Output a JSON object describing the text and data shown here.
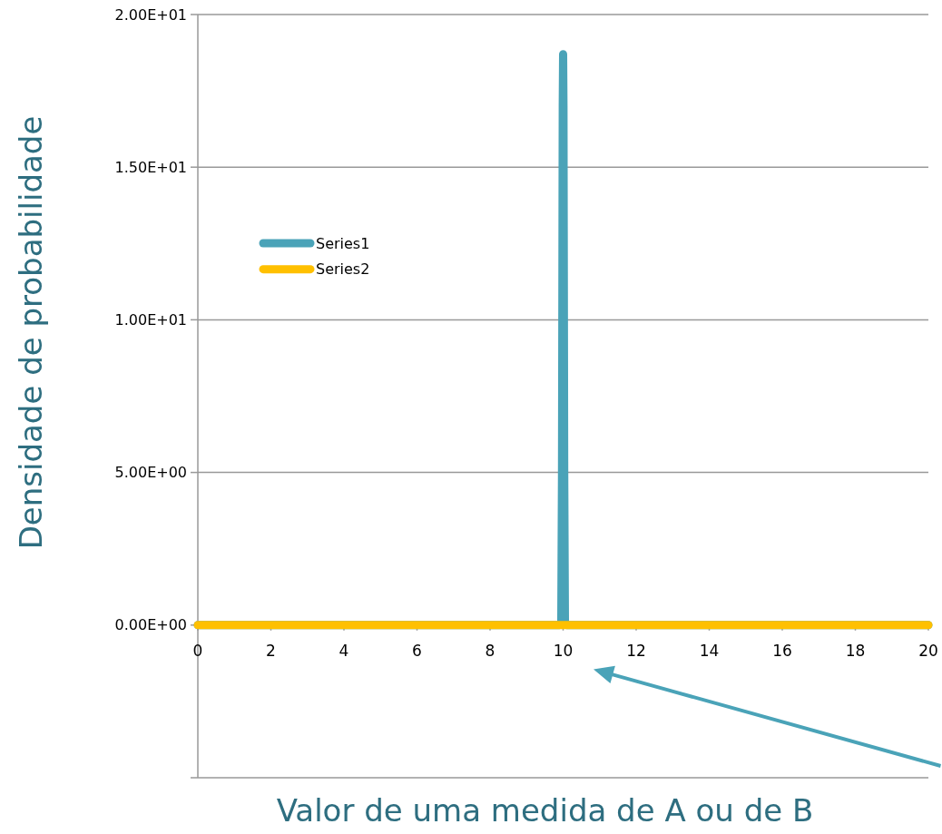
{
  "chart_data": {
    "type": "line",
    "xlabel": "Valor de uma medida de A ou de B",
    "ylabel": "Densidade de probabilidade",
    "xlim": [
      0,
      20
    ],
    "xticks": [
      0,
      2,
      4,
      6,
      8,
      10,
      12,
      14,
      16,
      18,
      20
    ],
    "ylim": [
      -5,
      20
    ],
    "yticks": [
      {
        "value": -5,
        "label": null
      },
      {
        "value": 0,
        "label": "0.00E+00"
      },
      {
        "value": 5,
        "label": "5.00E+00"
      },
      {
        "value": 10,
        "label": "1.00E+01"
      },
      {
        "value": 15,
        "label": "1.50E+01"
      },
      {
        "value": 20,
        "label": "2.00E+01"
      }
    ],
    "grid": "y",
    "legend": "top left",
    "line_style": "solid",
    "series": [
      {
        "name": "Series1",
        "color": "#4aa3b8",
        "x": [
          0,
          5,
          9.9,
          9.95,
          9.97,
          9.99,
          10,
          10.01,
          10.03,
          10.05,
          10.1,
          15,
          20
        ],
        "values": [
          0,
          0,
          0,
          0.1,
          5,
          17,
          18.7,
          17,
          5,
          0.1,
          0,
          0,
          0
        ]
      },
      {
        "name": "Series2",
        "color": "#ffc000",
        "x": [
          0,
          5,
          10,
          15,
          20
        ],
        "values": [
          0,
          0,
          0,
          0,
          0
        ]
      }
    ]
  }
}
